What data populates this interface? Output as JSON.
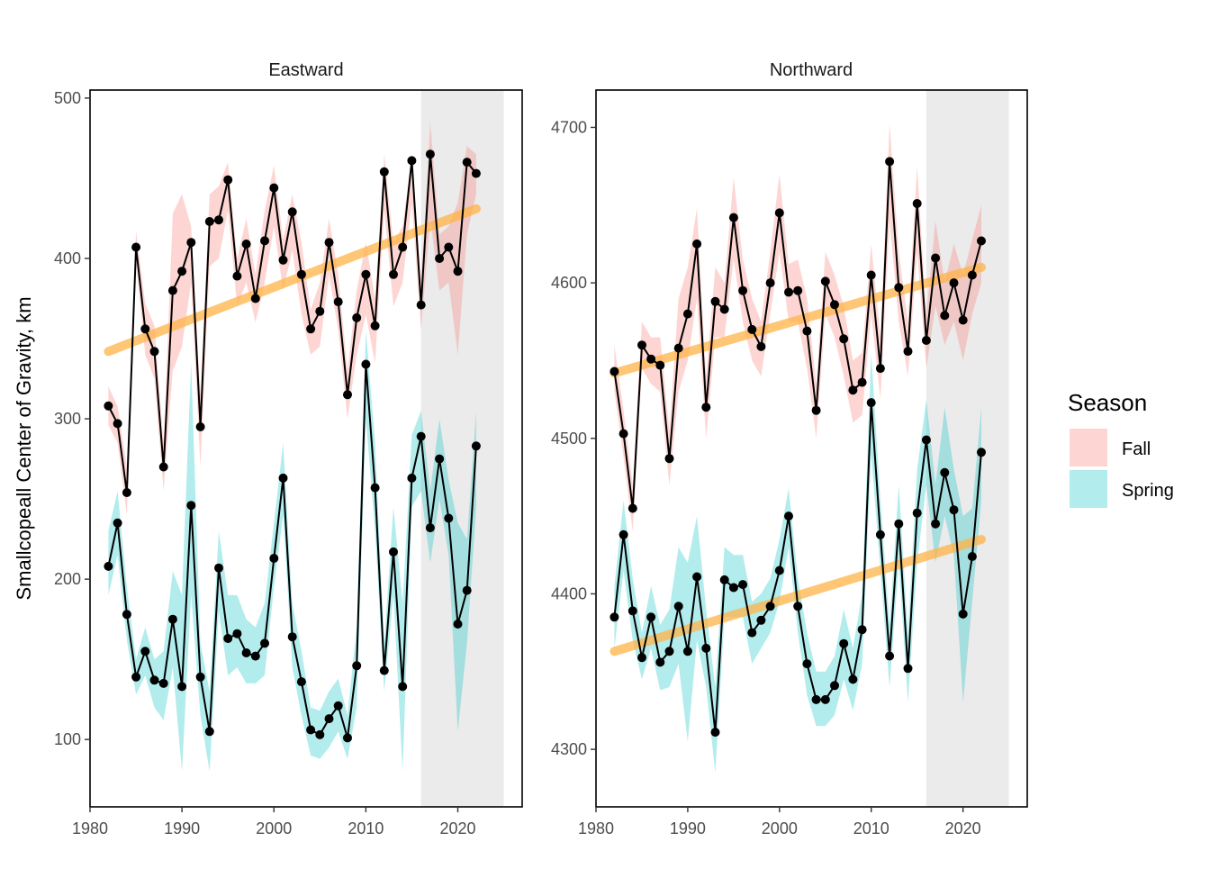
{
  "chart_data": {
    "type": "line",
    "ylabel": "Smallcopeall Center of Gravity, km",
    "legend": {
      "title": "Season",
      "placement": "right",
      "entries": [
        {
          "label": "Fall",
          "color": "#F8766D"
        },
        {
          "label": "Spring",
          "color": "#00BFC4"
        }
      ]
    },
    "colors": {
      "line": "#000000",
      "trend": "#FFB347",
      "highlight": "#EBEBEB",
      "fall": "#F8766D",
      "spring": "#00BFC4"
    },
    "highlight_x": [
      2016,
      2025
    ],
    "panels": [
      {
        "title": "Eastward",
        "xlim": [
          1980,
          2027
        ],
        "ylim": [
          58,
          505
        ],
        "xticks": [
          1980,
          1990,
          2000,
          2010,
          2020
        ],
        "yticks": [
          100,
          200,
          300,
          400,
          500
        ],
        "series": [
          {
            "name": "Fall",
            "x": [
              1982,
              1983,
              1984,
              1985,
              1986,
              1987,
              1988,
              1989,
              1990,
              1991,
              1992,
              1993,
              1994,
              1995,
              1996,
              1997,
              1998,
              1999,
              2000,
              2001,
              2002,
              2003,
              2004,
              2005,
              2006,
              2007,
              2008,
              2009,
              2010,
              2011,
              2012,
              2013,
              2014,
              2015,
              2016,
              2017,
              2018,
              2019,
              2020,
              2021,
              2022
            ],
            "y": [
              308,
              297,
              254,
              407,
              356,
              342,
              270,
              380,
              392,
              410,
              295,
              423,
              424,
              449,
              389,
              409,
              375,
              411,
              444,
              399,
              429,
              390,
              356,
              367,
              410,
              373,
              315,
              363,
              390,
              358,
              454,
              390,
              407,
              461,
              371,
              465,
              400,
              407,
              392,
              460,
              453
            ],
            "lower": [
              296,
              285,
              240,
              398,
              340,
              325,
              255,
              330,
              345,
              385,
              270,
              395,
              400,
              430,
              370,
              385,
              360,
              385,
              420,
              380,
              405,
              365,
              340,
              345,
              390,
              355,
              300,
              340,
              365,
              335,
              430,
              370,
              385,
              435,
              355,
              425,
              380,
              385,
              340,
              415,
              440
            ],
            "upper": [
              320,
              308,
              270,
              417,
              372,
              358,
              285,
              428,
              440,
              420,
              315,
              440,
              445,
              460,
              400,
              425,
              390,
              430,
              458,
              412,
              440,
              410,
              368,
              385,
              425,
              390,
              330,
              380,
              410,
              375,
              465,
              410,
              420,
              465,
              385,
              485,
              415,
              420,
              435,
              470,
              465
            ]
          },
          {
            "name": "Spring",
            "x": [
              1982,
              1983,
              1984,
              1985,
              1986,
              1987,
              1988,
              1989,
              1990,
              1991,
              1992,
              1993,
              1994,
              1995,
              1996,
              1997,
              1998,
              1999,
              2000,
              2001,
              2002,
              2003,
              2004,
              2005,
              2006,
              2007,
              2008,
              2009,
              2010,
              2011,
              2012,
              2013,
              2014,
              2015,
              2016,
              2017,
              2018,
              2019,
              2020,
              2021,
              2022
            ],
            "y": [
              208,
              235,
              178,
              139,
              155,
              137,
              135,
              175,
              133,
              246,
              139,
              105,
              207,
              163,
              166,
              154,
              152,
              160,
              213,
              263,
              164,
              136,
              106,
              103,
              113,
              121,
              101,
              146,
              334,
              257,
              143,
              217,
              133,
              263,
              289,
              232,
              275,
              238,
              172,
              193,
              283
            ],
            "lower": [
              190,
              215,
              162,
              128,
              140,
              120,
              112,
              145,
              80,
              190,
              115,
              80,
              180,
              140,
              145,
              135,
              135,
              140,
              195,
              240,
              145,
              115,
              90,
              88,
              95,
              105,
              88,
              120,
              300,
              230,
              130,
              190,
              80,
              245,
              255,
              210,
              250,
              215,
              105,
              160,
              245
            ],
            "upper": [
              230,
              255,
              195,
              150,
              170,
              150,
              155,
              205,
              190,
              335,
              160,
              130,
              230,
              190,
              190,
              175,
              170,
              185,
              235,
              285,
              185,
              155,
              120,
              118,
              130,
              138,
              115,
              170,
              355,
              285,
              160,
              245,
              185,
              290,
              305,
              255,
              300,
              262,
              235,
              225,
              305
            ]
          }
        ],
        "trend_lines": [
          {
            "name": "Fall",
            "x": [
              1982,
              2022
            ],
            "y": [
              342,
              431
            ]
          }
        ]
      },
      {
        "title": "Northward",
        "xlim": [
          1980,
          2027
        ],
        "ylim": [
          4263,
          4724
        ],
        "xticks": [
          1980,
          1990,
          2000,
          2010,
          2020
        ],
        "yticks": [
          4300,
          4400,
          4500,
          4600,
          4700
        ],
        "series": [
          {
            "name": "Fall",
            "x": [
              1982,
              1983,
              1984,
              1985,
              1986,
              1987,
              1988,
              1989,
              1990,
              1991,
              1992,
              1993,
              1994,
              1995,
              1996,
              1997,
              1998,
              1999,
              2000,
              2001,
              2002,
              2003,
              2004,
              2005,
              2006,
              2007,
              2008,
              2009,
              2010,
              2011,
              2012,
              2013,
              2014,
              2015,
              2016,
              2017,
              2018,
              2019,
              2020,
              2021,
              2022
            ],
            "y": [
              4543,
              4503,
              4455,
              4560,
              4551,
              4547,
              4487,
              4558,
              4580,
              4625,
              4520,
              4588,
              4583,
              4642,
              4595,
              4570,
              4559,
              4600,
              4645,
              4594,
              4595,
              4569,
              4518,
              4601,
              4586,
              4564,
              4531,
              4536,
              4605,
              4545,
              4678,
              4597,
              4556,
              4651,
              4563,
              4616,
              4579,
              4600,
              4576,
              4605,
              4627
            ],
            "lower": [
              4530,
              4488,
              4440,
              4545,
              4535,
              4530,
              4470,
              4530,
              4550,
              4590,
              4500,
              4565,
              4565,
              4615,
              4575,
              4550,
              4540,
              4580,
              4620,
              4575,
              4575,
              4545,
              4500,
              4580,
              4565,
              4540,
              4510,
              4515,
              4580,
              4525,
              4640,
              4575,
              4540,
              4620,
              4545,
              4585,
              4560,
              4575,
              4550,
              4580,
              4600
            ],
            "upper": [
              4560,
              4518,
              4470,
              4575,
              4565,
              4565,
              4505,
              4590,
              4610,
              4648,
              4540,
              4610,
              4600,
              4668,
              4615,
              4590,
              4575,
              4620,
              4670,
              4612,
              4615,
              4590,
              4535,
              4620,
              4605,
              4585,
              4550,
              4555,
              4625,
              4565,
              4702,
              4620,
              4575,
              4675,
              4580,
              4640,
              4600,
              4625,
              4605,
              4628,
              4650
            ]
          },
          {
            "name": "Spring",
            "x": [
              1982,
              1983,
              1984,
              1985,
              1986,
              1987,
              1988,
              1989,
              1990,
              1991,
              1992,
              1993,
              1994,
              1995,
              1996,
              1997,
              1998,
              1999,
              2000,
              2001,
              2002,
              2003,
              2004,
              2005,
              2006,
              2007,
              2008,
              2009,
              2010,
              2011,
              2012,
              2013,
              2014,
              2015,
              2016,
              2017,
              2018,
              2019,
              2020,
              2021,
              2022
            ],
            "y": [
              4385,
              4438,
              4389,
              4359,
              4385,
              4356,
              4363,
              4392,
              4363,
              4411,
              4365,
              4311,
              4409,
              4404,
              4406,
              4375,
              4383,
              4392,
              4415,
              4450,
              4392,
              4355,
              4332,
              4332,
              4341,
              4368,
              4345,
              4377,
              4523,
              4438,
              4360,
              4445,
              4352,
              4452,
              4499,
              4445,
              4478,
              4454,
              4387,
              4424,
              4491
            ],
            "lower": [
              4365,
              4415,
              4370,
              4345,
              4365,
              4338,
              4340,
              4355,
              4305,
              4370,
              4340,
              4285,
              4385,
              4385,
              4385,
              4355,
              4365,
              4375,
              4395,
              4430,
              4375,
              4335,
              4315,
              4315,
              4322,
              4345,
              4325,
              4355,
              4490,
              4415,
              4340,
              4420,
              4330,
              4420,
              4470,
              4420,
              4450,
              4425,
              4330,
              4395,
              4460
            ],
            "upper": [
              4405,
              4460,
              4410,
              4375,
              4405,
              4380,
              4390,
              4430,
              4420,
              4450,
              4390,
              4340,
              4430,
              4425,
              4425,
              4395,
              4400,
              4410,
              4435,
              4468,
              4410,
              4375,
              4350,
              4350,
              4360,
              4390,
              4365,
              4400,
              4555,
              4460,
              4380,
              4470,
              4375,
              4480,
              4525,
              4470,
              4520,
              4480,
              4450,
              4455,
              4520
            ]
          }
        ],
        "trend_lines": [
          {
            "name": "Fall",
            "x": [
              1982,
              2022
            ],
            "y": [
              4542,
              4610
            ]
          },
          {
            "name": "Spring",
            "x": [
              1982,
              2022
            ],
            "y": [
              4363,
              4435
            ]
          }
        ]
      }
    ]
  }
}
